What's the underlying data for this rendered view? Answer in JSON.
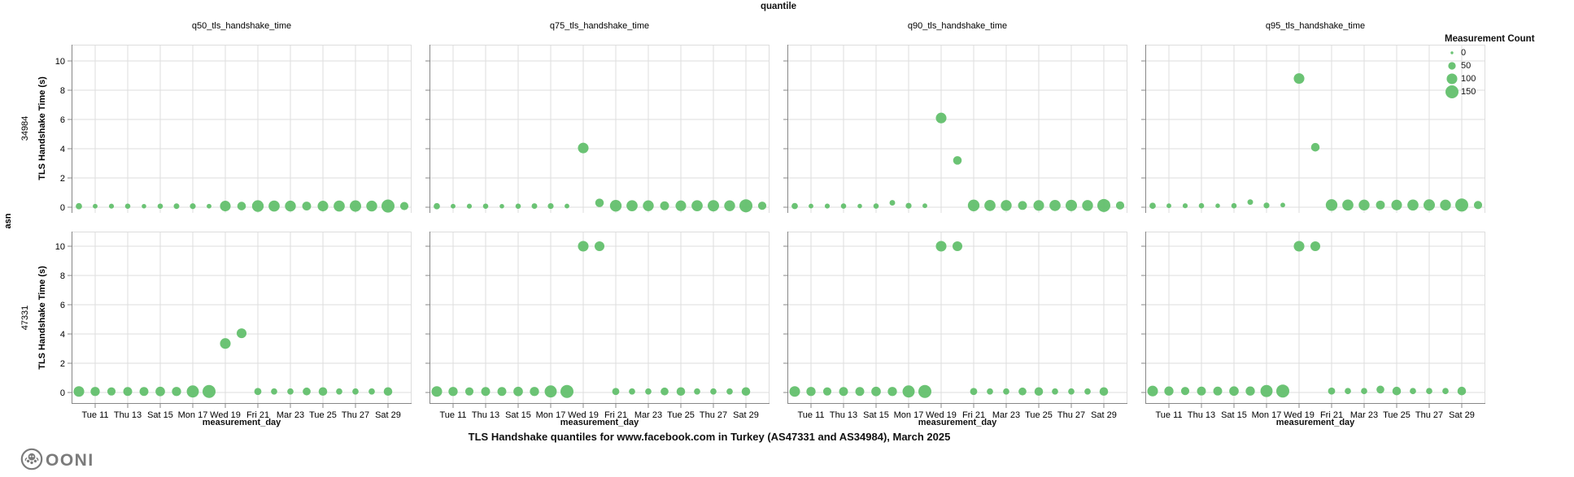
{
  "header": {
    "facet_title": "quantile"
  },
  "legend": {
    "title": "Measurement Count",
    "sizes": [
      0,
      50,
      100,
      150
    ]
  },
  "footer": {
    "title": "TLS Handshake quantiles for www.facebook.com in Turkey (AS47331 and AS34984), March 2025",
    "logo_text": "OONI"
  },
  "colors": {
    "dot": "#63c06d",
    "grid": "#dddddd",
    "axis": "#888888",
    "text": "#000000",
    "logo": "#7b7b7b"
  },
  "chart_data": {
    "type": "scatter",
    "title": "TLS Handshake quantiles for www.facebook.com in Turkey (AS47331 and AS34984), March 2025",
    "facet_column_title": "quantile",
    "facet_row_title": "asn",
    "columns": [
      "q50_tls_handshake_time",
      "q75_tls_handshake_time",
      "q90_tls_handshake_time",
      "q95_tls_handshake_time"
    ],
    "column_keys": [
      "q50",
      "q75",
      "q90",
      "q95"
    ],
    "y_axis": {
      "label": "TLS Handshake Time (s)",
      "ticks": [
        0,
        2,
        4,
        6,
        8,
        10
      ],
      "lim": [
        0,
        11
      ]
    },
    "x_axis": {
      "label": "measurement_day",
      "tick_labels": [
        "Tue 11",
        "Thu 13",
        "Sat 15",
        "Mon 17",
        "Wed 19",
        "Fri 21",
        "Mar 23",
        "Tue 25",
        "Thu 27",
        "Sat 29"
      ],
      "tick_days": [
        1,
        3,
        5,
        7,
        9,
        11,
        13,
        15,
        17,
        19
      ],
      "start_day": "Mar 10",
      "end_day": "Mar 30"
    },
    "size_scale": {
      "field": "Measurement Count",
      "domain": [
        0,
        150
      ],
      "legend_values": [
        0,
        50,
        100,
        150
      ]
    },
    "rows": [
      {
        "asn": "34984",
        "points": [
          {
            "day": "Mar 10",
            "d": 0,
            "count": 35,
            "q50": 0.07,
            "q75": 0.07,
            "q90": 0.08,
            "q95": 0.1
          },
          {
            "day": "Mar 11",
            "d": 1,
            "count": 20,
            "q50": 0.07,
            "q75": 0.07,
            "q90": 0.08,
            "q95": 0.1
          },
          {
            "day": "Mar 12",
            "d": 2,
            "count": 22,
            "q50": 0.07,
            "q75": 0.07,
            "q90": 0.08,
            "q95": 0.1
          },
          {
            "day": "Mar 13",
            "d": 3,
            "count": 25,
            "q50": 0.07,
            "q75": 0.07,
            "q90": 0.08,
            "q95": 0.1
          },
          {
            "day": "Mar 14",
            "d": 4,
            "count": 18,
            "q50": 0.07,
            "q75": 0.07,
            "q90": 0.08,
            "q95": 0.1
          },
          {
            "day": "Mar 15",
            "d": 5,
            "count": 25,
            "q50": 0.07,
            "q75": 0.07,
            "q90": 0.08,
            "q95": 0.1
          },
          {
            "day": "Mar 16",
            "d": 6,
            "count": 28,
            "q50": 0.07,
            "q75": 0.08,
            "q90": 0.3,
            "q95": 0.35
          },
          {
            "day": "Mar 17",
            "d": 7,
            "count": 30,
            "q50": 0.07,
            "q75": 0.08,
            "q90": 0.1,
            "q95": 0.12
          },
          {
            "day": "Mar 18",
            "d": 8,
            "count": 20,
            "q50": 0.07,
            "q75": 0.08,
            "q90": 0.1,
            "q95": 0.15
          },
          {
            "day": "Mar 19",
            "d": 9,
            "count": 100,
            "q50": 0.08,
            "q75": 4.05,
            "q90": 6.1,
            "q95": 8.8
          },
          {
            "day": "Mar 20",
            "d": 10,
            "count": 65,
            "q50": 0.08,
            "q75": 0.3,
            "q90": 3.2,
            "q95": 4.1
          },
          {
            "day": "Mar 21",
            "d": 11,
            "count": 120,
            "q50": 0.08,
            "q75": 0.1,
            "q90": 0.12,
            "q95": 0.15
          },
          {
            "day": "Mar 22",
            "d": 12,
            "count": 110,
            "q50": 0.08,
            "q75": 0.1,
            "q90": 0.12,
            "q95": 0.15
          },
          {
            "day": "Mar 23",
            "d": 13,
            "count": 105,
            "q50": 0.08,
            "q75": 0.1,
            "q90": 0.12,
            "q95": 0.15
          },
          {
            "day": "Mar 24",
            "d": 14,
            "count": 70,
            "q50": 0.08,
            "q75": 0.1,
            "q90": 0.12,
            "q95": 0.15
          },
          {
            "day": "Mar 25",
            "d": 15,
            "count": 100,
            "q50": 0.08,
            "q75": 0.1,
            "q90": 0.12,
            "q95": 0.15
          },
          {
            "day": "Mar 26",
            "d": 16,
            "count": 110,
            "q50": 0.08,
            "q75": 0.1,
            "q90": 0.12,
            "q95": 0.15
          },
          {
            "day": "Mar 27",
            "d": 17,
            "count": 115,
            "q50": 0.08,
            "q75": 0.1,
            "q90": 0.12,
            "q95": 0.15
          },
          {
            "day": "Mar 28",
            "d": 18,
            "count": 105,
            "q50": 0.08,
            "q75": 0.1,
            "q90": 0.12,
            "q95": 0.15
          },
          {
            "day": "Mar 29",
            "d": 19,
            "count": 150,
            "q50": 0.08,
            "q75": 0.1,
            "q90": 0.12,
            "q95": 0.15
          },
          {
            "day": "Mar 30",
            "d": 20,
            "count": 60,
            "q50": 0.08,
            "q75": 0.1,
            "q90": 0.12,
            "q95": 0.15
          }
        ]
      },
      {
        "asn": "47331",
        "points": [
          {
            "day": "Mar 10",
            "d": 0,
            "count": 100,
            "q50": 0.07,
            "q75": 0.07,
            "q90": 0.07,
            "q95": 0.1
          },
          {
            "day": "Mar 11",
            "d": 1,
            "count": 75,
            "q50": 0.07,
            "q75": 0.07,
            "q90": 0.07,
            "q95": 0.1
          },
          {
            "day": "Mar 12",
            "d": 2,
            "count": 60,
            "q50": 0.07,
            "q75": 0.07,
            "q90": 0.07,
            "q95": 0.1
          },
          {
            "day": "Mar 13",
            "d": 3,
            "count": 70,
            "q50": 0.07,
            "q75": 0.07,
            "q90": 0.07,
            "q95": 0.1
          },
          {
            "day": "Mar 14",
            "d": 4,
            "count": 70,
            "q50": 0.07,
            "q75": 0.07,
            "q90": 0.07,
            "q95": 0.1
          },
          {
            "day": "Mar 15",
            "d": 5,
            "count": 80,
            "q50": 0.07,
            "q75": 0.07,
            "q90": 0.07,
            "q95": 0.1
          },
          {
            "day": "Mar 16",
            "d": 6,
            "count": 75,
            "q50": 0.07,
            "q75": 0.07,
            "q90": 0.07,
            "q95": 0.1
          },
          {
            "day": "Mar 17",
            "d": 7,
            "count": 130,
            "q50": 0.07,
            "q75": 0.07,
            "q90": 0.07,
            "q95": 0.1
          },
          {
            "day": "Mar 18",
            "d": 8,
            "count": 150,
            "q50": 0.07,
            "q75": 0.07,
            "q90": 0.07,
            "q95": 0.1
          },
          {
            "day": "Mar 19",
            "d": 9,
            "count": 100,
            "q50": 3.35,
            "q75": 10,
            "q90": 10,
            "q95": 10
          },
          {
            "day": "Mar 20",
            "d": 10,
            "count": 85,
            "q50": 4.05,
            "q75": 10,
            "q90": 10,
            "q95": 10
          },
          {
            "day": "Mar 21",
            "d": 11,
            "count": 45,
            "q50": 0.07,
            "q75": 0.07,
            "q90": 0.07,
            "q95": 0.1
          },
          {
            "day": "Mar 22",
            "d": 12,
            "count": 35,
            "q50": 0.07,
            "q75": 0.07,
            "q90": 0.07,
            "q95": 0.1
          },
          {
            "day": "Mar 23",
            "d": 13,
            "count": 35,
            "q50": 0.07,
            "q75": 0.07,
            "q90": 0.07,
            "q95": 0.1
          },
          {
            "day": "Mar 24",
            "d": 14,
            "count": 55,
            "q50": 0.07,
            "q75": 0.07,
            "q90": 0.07,
            "q95": 0.2
          },
          {
            "day": "Mar 25",
            "d": 15,
            "count": 65,
            "q50": 0.07,
            "q75": 0.07,
            "q90": 0.07,
            "q95": 0.1
          },
          {
            "day": "Mar 26",
            "d": 16,
            "count": 35,
            "q50": 0.07,
            "q75": 0.07,
            "q90": 0.07,
            "q95": 0.1
          },
          {
            "day": "Mar 27",
            "d": 17,
            "count": 35,
            "q50": 0.07,
            "q75": 0.07,
            "q90": 0.07,
            "q95": 0.1
          },
          {
            "day": "Mar 28",
            "d": 18,
            "count": 35,
            "q50": 0.07,
            "q75": 0.07,
            "q90": 0.07,
            "q95": 0.1
          },
          {
            "day": "Mar 29",
            "d": 19,
            "count": 65,
            "q50": 0.07,
            "q75": 0.07,
            "q90": 0.07,
            "q95": 0.1
          }
        ]
      }
    ]
  }
}
